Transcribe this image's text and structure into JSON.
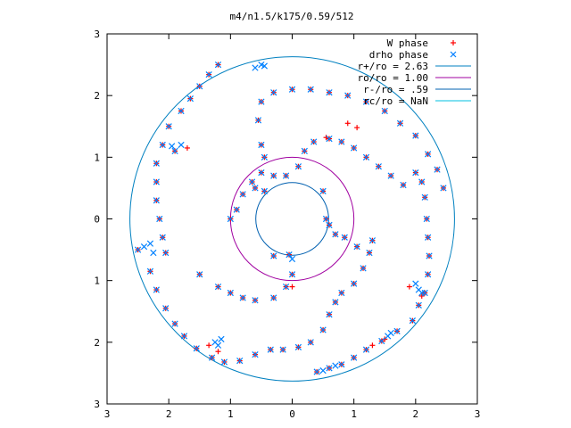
{
  "chart_data": {
    "type": "scatter",
    "title": "m4/n1.5/k175/0.59/512",
    "xlabel": "",
    "ylabel": "",
    "xlim": [
      -3,
      3
    ],
    "ylim": [
      -3,
      3
    ],
    "x_tick_values": [
      -3,
      -2,
      -1,
      0,
      1,
      2,
      3
    ],
    "y_tick_values": [
      -3,
      -2,
      -1,
      0,
      1,
      2,
      3
    ],
    "x_tick_labels": [
      "3",
      "2",
      "1",
      "0",
      "1",
      "2",
      "3"
    ],
    "y_tick_labels": [
      "3",
      "2",
      "1",
      "0",
      "1",
      "2",
      "3"
    ],
    "grid": false,
    "legend_position": "top-right",
    "series": [
      {
        "name": "W phase",
        "marker": "plus",
        "color": "#ff0000",
        "points": [
          [
            -1.2,
            2.5
          ],
          [
            -1.35,
            2.34
          ],
          [
            -1.5,
            2.15
          ],
          [
            -1.65,
            1.95
          ],
          [
            -1.8,
            1.75
          ],
          [
            -2.0,
            1.5
          ],
          [
            -2.1,
            1.2
          ],
          [
            -2.2,
            0.9
          ],
          [
            -2.2,
            0.6
          ],
          [
            -2.2,
            0.3
          ],
          [
            -2.15,
            0.0
          ],
          [
            -2.1,
            -0.3
          ],
          [
            -2.05,
            -0.55
          ],
          [
            -1.5,
            -0.9
          ],
          [
            -1.2,
            -1.1
          ],
          [
            -1.0,
            -1.2
          ],
          [
            -0.8,
            -1.28
          ],
          [
            -0.6,
            -1.32
          ],
          [
            -0.3,
            -1.28
          ],
          [
            -0.1,
            -1.1
          ],
          [
            0.0,
            -0.9
          ],
          [
            -2.5,
            -0.5
          ],
          [
            -2.3,
            -0.85
          ],
          [
            -2.2,
            -1.15
          ],
          [
            -2.05,
            -1.45
          ],
          [
            -1.9,
            -1.7
          ],
          [
            -1.75,
            -1.9
          ],
          [
            -1.55,
            -2.1
          ],
          [
            -1.3,
            -2.25
          ],
          [
            -1.1,
            -2.32
          ],
          [
            -0.85,
            -2.3
          ],
          [
            -0.6,
            -2.2
          ],
          [
            -0.35,
            -2.12
          ],
          [
            -0.15,
            -2.12
          ],
          [
            0.1,
            -2.08
          ],
          [
            0.3,
            -2.0
          ],
          [
            0.5,
            -1.8
          ],
          [
            0.6,
            -1.55
          ],
          [
            0.7,
            -1.35
          ],
          [
            0.8,
            -1.2
          ],
          [
            1.0,
            -1.05
          ],
          [
            1.15,
            -0.8
          ],
          [
            1.25,
            -0.55
          ],
          [
            1.3,
            -0.35
          ],
          [
            0.4,
            -2.48
          ],
          [
            0.6,
            -2.42
          ],
          [
            0.8,
            -2.36
          ],
          [
            1.0,
            -2.25
          ],
          [
            1.2,
            -2.12
          ],
          [
            1.45,
            -1.98
          ],
          [
            1.7,
            -1.82
          ],
          [
            1.95,
            -1.65
          ],
          [
            2.05,
            -1.4
          ],
          [
            2.15,
            -1.2
          ],
          [
            2.2,
            -0.9
          ],
          [
            2.22,
            -0.6
          ],
          [
            2.2,
            -0.3
          ],
          [
            2.18,
            0.0
          ],
          [
            2.15,
            0.35
          ],
          [
            2.1,
            0.6
          ],
          [
            2.0,
            0.75
          ],
          [
            1.8,
            0.55
          ],
          [
            1.6,
            0.7
          ],
          [
            1.4,
            0.85
          ],
          [
            1.2,
            1.0
          ],
          [
            1.0,
            1.15
          ],
          [
            0.8,
            1.25
          ],
          [
            0.6,
            1.3
          ],
          [
            0.35,
            1.25
          ],
          [
            0.2,
            1.1
          ],
          [
            0.1,
            0.85
          ],
          [
            -0.1,
            0.7
          ],
          [
            -0.3,
            0.7
          ],
          [
            -0.5,
            0.75
          ],
          [
            -0.65,
            0.6
          ],
          [
            -0.8,
            0.4
          ],
          [
            -0.9,
            0.15
          ],
          [
            -1.0,
            0.0
          ],
          [
            -0.6,
            0.5
          ],
          [
            -0.45,
            1.0
          ],
          [
            -0.5,
            1.2
          ],
          [
            -0.55,
            1.6
          ],
          [
            -0.5,
            1.9
          ],
          [
            -0.3,
            2.05
          ],
          [
            0.0,
            2.1
          ],
          [
            0.3,
            2.1
          ],
          [
            0.6,
            2.05
          ],
          [
            0.9,
            2.0
          ],
          [
            1.2,
            1.9
          ],
          [
            1.5,
            1.75
          ],
          [
            1.75,
            1.55
          ],
          [
            2.0,
            1.35
          ],
          [
            2.2,
            1.05
          ],
          [
            2.35,
            0.8
          ],
          [
            2.45,
            0.5
          ],
          [
            0.5,
            0.45
          ],
          [
            0.55,
            0.0
          ],
          [
            0.6,
            -0.1
          ],
          [
            0.7,
            -0.25
          ],
          [
            0.85,
            -0.3
          ],
          [
            1.05,
            -0.45
          ],
          [
            -0.45,
            0.45
          ],
          [
            -0.3,
            -0.6
          ],
          [
            -0.05,
            -0.58
          ],
          [
            -1.9,
            1.1
          ],
          [
            -1.7,
            1.15
          ],
          [
            -1.35,
            -2.05
          ],
          [
            -1.2,
            -2.15
          ],
          [
            1.9,
            -1.1
          ],
          [
            2.1,
            -1.25
          ],
          [
            1.5,
            -1.95
          ],
          [
            1.3,
            -2.05
          ],
          [
            0.9,
            1.55
          ],
          [
            1.05,
            1.48
          ],
          [
            0.55,
            1.32
          ],
          [
            0.0,
            -1.1
          ]
        ]
      },
      {
        "name": "drho phase",
        "marker": "cross",
        "color": "#0080ff",
        "points": [
          [
            -1.2,
            2.5
          ],
          [
            -1.35,
            2.34
          ],
          [
            -1.5,
            2.15
          ],
          [
            -1.65,
            1.95
          ],
          [
            -1.8,
            1.75
          ],
          [
            -2.0,
            1.5
          ],
          [
            -2.1,
            1.2
          ],
          [
            -2.2,
            0.9
          ],
          [
            -2.2,
            0.6
          ],
          [
            -2.2,
            0.3
          ],
          [
            -2.15,
            0.0
          ],
          [
            -2.1,
            -0.3
          ],
          [
            -2.05,
            -0.55
          ],
          [
            -1.5,
            -0.9
          ],
          [
            -1.2,
            -1.1
          ],
          [
            -1.0,
            -1.2
          ],
          [
            -0.8,
            -1.28
          ],
          [
            -0.6,
            -1.32
          ],
          [
            -0.3,
            -1.28
          ],
          [
            -0.1,
            -1.1
          ],
          [
            0.0,
            -0.9
          ],
          [
            -2.5,
            -0.5
          ],
          [
            -2.3,
            -0.85
          ],
          [
            -2.2,
            -1.15
          ],
          [
            -2.05,
            -1.45
          ],
          [
            -1.9,
            -1.7
          ],
          [
            -1.75,
            -1.9
          ],
          [
            -1.55,
            -2.1
          ],
          [
            -1.3,
            -2.25
          ],
          [
            -1.1,
            -2.32
          ],
          [
            -0.85,
            -2.3
          ],
          [
            -0.6,
            -2.2
          ],
          [
            -0.35,
            -2.12
          ],
          [
            -0.15,
            -2.12
          ],
          [
            0.1,
            -2.08
          ],
          [
            0.3,
            -2.0
          ],
          [
            0.5,
            -1.8
          ],
          [
            0.6,
            -1.55
          ],
          [
            0.7,
            -1.35
          ],
          [
            0.8,
            -1.2
          ],
          [
            1.0,
            -1.05
          ],
          [
            1.15,
            -0.8
          ],
          [
            1.25,
            -0.55
          ],
          [
            1.3,
            -0.35
          ],
          [
            0.4,
            -2.48
          ],
          [
            0.6,
            -2.42
          ],
          [
            0.8,
            -2.36
          ],
          [
            1.0,
            -2.25
          ],
          [
            1.2,
            -2.12
          ],
          [
            1.45,
            -1.98
          ],
          [
            1.7,
            -1.82
          ],
          [
            1.95,
            -1.65
          ],
          [
            2.05,
            -1.4
          ],
          [
            2.15,
            -1.2
          ],
          [
            2.2,
            -0.9
          ],
          [
            2.22,
            -0.6
          ],
          [
            2.2,
            -0.3
          ],
          [
            2.18,
            0.0
          ],
          [
            2.15,
            0.35
          ],
          [
            2.1,
            0.6
          ],
          [
            2.0,
            0.75
          ],
          [
            1.8,
            0.55
          ],
          [
            1.6,
            0.7
          ],
          [
            1.4,
            0.85
          ],
          [
            1.2,
            1.0
          ],
          [
            1.0,
            1.15
          ],
          [
            0.8,
            1.25
          ],
          [
            0.6,
            1.3
          ],
          [
            0.35,
            1.25
          ],
          [
            0.2,
            1.1
          ],
          [
            0.1,
            0.85
          ],
          [
            -0.1,
            0.7
          ],
          [
            -0.3,
            0.7
          ],
          [
            -0.5,
            0.75
          ],
          [
            -0.65,
            0.6
          ],
          [
            -0.8,
            0.4
          ],
          [
            -0.9,
            0.15
          ],
          [
            -1.0,
            0.0
          ],
          [
            -0.6,
            0.5
          ],
          [
            -0.45,
            1.0
          ],
          [
            -0.5,
            1.2
          ],
          [
            -0.55,
            1.6
          ],
          [
            -0.5,
            1.9
          ],
          [
            -0.3,
            2.05
          ],
          [
            0.0,
            2.1
          ],
          [
            0.3,
            2.1
          ],
          [
            0.6,
            2.05
          ],
          [
            0.9,
            2.0
          ],
          [
            1.2,
            1.9
          ],
          [
            1.5,
            1.75
          ],
          [
            1.75,
            1.55
          ],
          [
            2.0,
            1.35
          ],
          [
            2.2,
            1.05
          ],
          [
            2.35,
            0.8
          ],
          [
            2.45,
            0.5
          ],
          [
            0.5,
            0.45
          ],
          [
            0.55,
            0.0
          ],
          [
            0.6,
            -0.1
          ],
          [
            0.7,
            -0.25
          ],
          [
            0.85,
            -0.3
          ],
          [
            1.05,
            -0.45
          ],
          [
            -0.45,
            0.45
          ],
          [
            -0.3,
            -0.6
          ],
          [
            -0.05,
            -0.58
          ],
          [
            -0.5,
            2.5
          ],
          [
            -0.6,
            2.45
          ],
          [
            -0.45,
            2.48
          ],
          [
            -2.3,
            -0.4
          ],
          [
            -2.25,
            -0.55
          ],
          [
            -2.4,
            -0.45
          ],
          [
            -1.2,
            -2.05
          ],
          [
            -1.15,
            -1.95
          ],
          [
            -1.25,
            -2.0
          ],
          [
            2.05,
            -1.15
          ],
          [
            2.0,
            -1.05
          ],
          [
            2.1,
            -1.2
          ],
          [
            -1.95,
            1.18
          ],
          [
            -1.8,
            1.2
          ],
          [
            -1.9,
            1.1
          ],
          [
            0.5,
            -2.46
          ],
          [
            0.7,
            -2.38
          ],
          [
            1.55,
            -1.9
          ],
          [
            1.6,
            -1.85
          ],
          [
            0.0,
            -0.65
          ]
        ]
      }
    ],
    "circles": [
      {
        "name": "r+/ro = 2.63",
        "r": 2.63,
        "color": "#0080c0"
      },
      {
        "name": "ro/ro = 1.00",
        "r": 1.0,
        "color": "#a000a0"
      },
      {
        "name": "r-/ro = .59",
        "r": 0.59,
        "color": "#0060b0"
      },
      {
        "name": "rc/ro = NaN",
        "r": null,
        "color": "#00c0e0"
      }
    ]
  }
}
